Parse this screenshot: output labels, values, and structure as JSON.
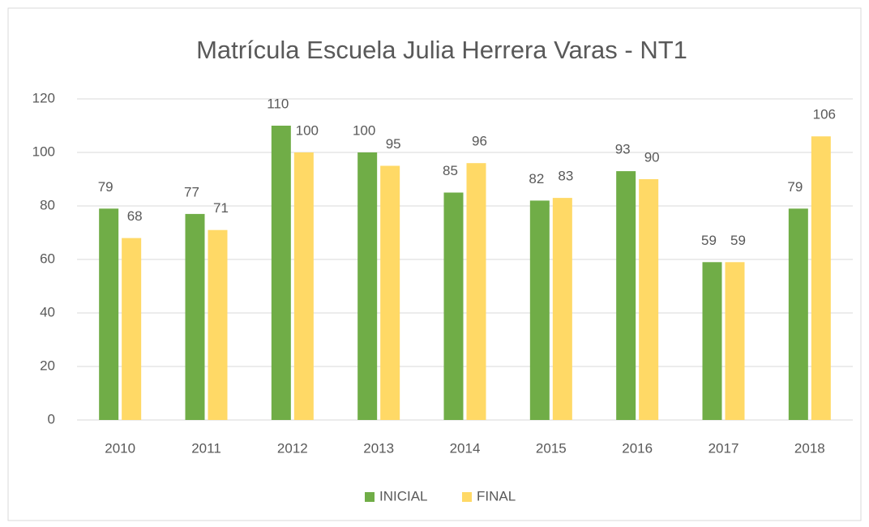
{
  "chart_data": {
    "type": "bar",
    "title": "Matrícula Escuela Julia Herrera Varas - NT1",
    "categories": [
      "2010",
      "2011",
      "2012",
      "2013",
      "2014",
      "2015",
      "2016",
      "2017",
      "2018"
    ],
    "series": [
      {
        "name": "INICIAL",
        "color": "#70ad47",
        "values": [
          79,
          77,
          110,
          100,
          85,
          82,
          93,
          59,
          79
        ]
      },
      {
        "name": "FINAL",
        "color": "#ffd966",
        "values": [
          68,
          71,
          100,
          95,
          96,
          83,
          90,
          59,
          106
        ]
      }
    ],
    "ylim": [
      0,
      120
    ],
    "yticks": [
      0,
      20,
      40,
      60,
      80,
      100,
      120
    ],
    "grid": true,
    "legend": "bottom"
  }
}
